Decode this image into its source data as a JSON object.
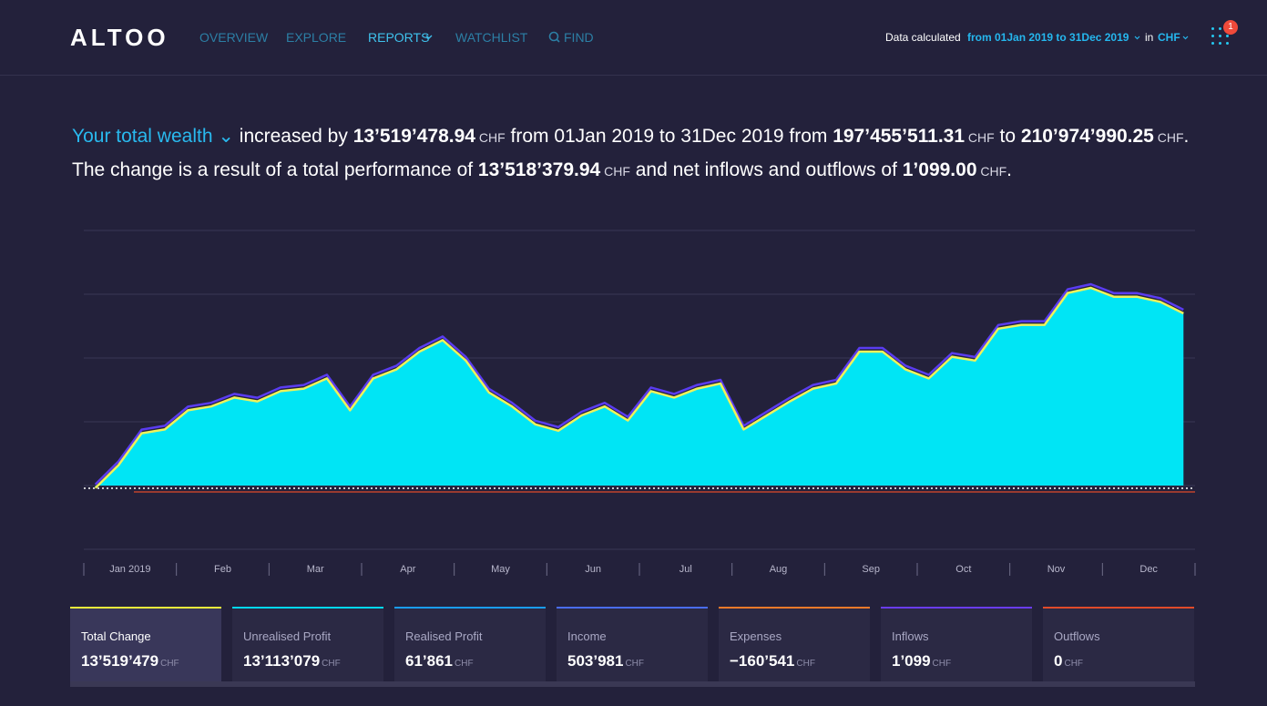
{
  "nav": {
    "logo": "ALTOO",
    "items": [
      "OVERVIEW",
      "EXPLORE",
      "REPORTS",
      "WATCHLIST",
      "FIND"
    ],
    "data_calculated": "Data calculated",
    "period": "from 01Jan 2019 to 31Dec 2019",
    "in": "in",
    "currency": "CHF",
    "badge": "1"
  },
  "summary": {
    "line1": [
      "Your total wealth",
      " increased by ",
      "13’519’478.94",
      " CHF",
      " from 01Jan 2019 to 31Dec 2019 from ",
      "197’455’511.31",
      " CHF",
      " to ",
      "210’974’990.25",
      " CHF",
      "."
    ],
    "line2": [
      "The change is a result of a total performance of ",
      "13’518’379.94",
      " CHF",
      " and net inflows and outflows of ",
      "1’099.00",
      " CHF",
      "."
    ]
  },
  "chart_data": {
    "type": "area",
    "categories": [
      null,
      "Jan 2019",
      null,
      null,
      null,
      "Feb",
      null,
      null,
      null,
      "Mar",
      null,
      null,
      null,
      "Apr",
      null,
      null,
      null,
      "May",
      null,
      null,
      null,
      "Jun",
      null,
      null,
      null,
      "Jul",
      null,
      null,
      null,
      "Aug",
      null,
      null,
      null,
      "Sep",
      null,
      null,
      null,
      "Oct",
      null,
      null,
      null,
      "Nov",
      null,
      null,
      null,
      "Dec",
      null,
      null
    ],
    "values": [
      -200000,
      1600000,
      4100000,
      4400000,
      5900000,
      6200000,
      6900000,
      6600000,
      7400000,
      7600000,
      8400000,
      5900000,
      8400000,
      9100000,
      10500000,
      11400000,
      9800000,
      7300000,
      6200000,
      4800000,
      4300000,
      5500000,
      6200000,
      5100000,
      7400000,
      6900000,
      7600000,
      8000000,
      4400000,
      5500000,
      6600000,
      7600000,
      8000000,
      10500000,
      10500000,
      9100000,
      8400000,
      10100000,
      9800000,
      12300000,
      12600000,
      12600000,
      15100000,
      15500000,
      14800000,
      14800000,
      14400000,
      13500000
    ],
    "color": "#00e5f5",
    "line_color": "#eef25a",
    "ylim": [
      -5000000,
      20000000
    ],
    "yticks": [
      -5000000,
      0,
      5000000,
      10000000,
      15000000,
      20000000
    ],
    "grid": true
  },
  "cards": [
    {
      "label": "Total Change",
      "value": "13’519’479",
      "unit": "CHF",
      "color": "#e8f03c"
    },
    {
      "label": "Unrealised Profit",
      "value": "13’113’079",
      "unit": "CHF",
      "color": "#00d8f0"
    },
    {
      "label": "Realised Profit",
      "value": "61’861",
      "unit": "CHF",
      "color": "#1a9cf0"
    },
    {
      "label": "Income",
      "value": "503’981",
      "unit": "CHF",
      "color": "#4a6cf0"
    },
    {
      "label": "Expenses",
      "value": "−160’541",
      "unit": "CHF",
      "color": "#f07a2a"
    },
    {
      "label": "Inflows",
      "value": "1’099",
      "unit": "CHF",
      "color": "#6a3cf0"
    },
    {
      "label": "Outflows",
      "value": "0",
      "unit": "CHF",
      "color": "#e04a2a"
    }
  ]
}
